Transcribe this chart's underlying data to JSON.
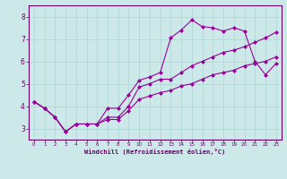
{
  "xlabel": "Windchill (Refroidissement éolien,°C)",
  "ylabel": "",
  "bg_color": "#cce8e8",
  "line_color": "#990099",
  "xlim": [
    -0.5,
    23.5
  ],
  "ylim": [
    2.5,
    8.5
  ],
  "xticks": [
    0,
    1,
    2,
    3,
    4,
    5,
    6,
    7,
    8,
    9,
    10,
    11,
    12,
    13,
    14,
    15,
    16,
    17,
    18,
    19,
    20,
    21,
    22,
    23
  ],
  "yticks": [
    3,
    4,
    5,
    6,
    7,
    8
  ],
  "line1_x": [
    0,
    1,
    2,
    3,
    4,
    5,
    6,
    7,
    8,
    9,
    10,
    11,
    12,
    13,
    14,
    15,
    16,
    17,
    18,
    19,
    20,
    21,
    22,
    23
  ],
  "line1_y": [
    4.2,
    3.9,
    3.5,
    2.85,
    3.2,
    3.2,
    3.2,
    3.9,
    3.9,
    4.5,
    5.15,
    5.3,
    5.5,
    7.05,
    7.4,
    7.85,
    7.55,
    7.5,
    7.35,
    7.5,
    7.35,
    6.0,
    5.4,
    5.9
  ],
  "line2_x": [
    0,
    1,
    2,
    3,
    4,
    5,
    6,
    7,
    8,
    9,
    10,
    11,
    12,
    13,
    14,
    15,
    16,
    17,
    18,
    19,
    20,
    21,
    22,
    23
  ],
  "line2_y": [
    4.2,
    3.9,
    3.5,
    2.85,
    3.2,
    3.2,
    3.2,
    3.5,
    3.5,
    4.0,
    4.85,
    5.0,
    5.2,
    5.2,
    5.5,
    5.8,
    6.0,
    6.2,
    6.4,
    6.5,
    6.65,
    6.85,
    7.05,
    7.3
  ],
  "line3_x": [
    0,
    1,
    2,
    3,
    4,
    5,
    6,
    7,
    8,
    9,
    10,
    11,
    12,
    13,
    14,
    15,
    16,
    17,
    18,
    19,
    20,
    21,
    22,
    23
  ],
  "line3_y": [
    4.2,
    3.9,
    3.5,
    2.85,
    3.2,
    3.2,
    3.2,
    3.4,
    3.4,
    3.8,
    4.3,
    4.45,
    4.6,
    4.7,
    4.9,
    5.0,
    5.2,
    5.4,
    5.5,
    5.6,
    5.8,
    5.9,
    6.0,
    6.2
  ],
  "grid_color": "#aad4d4",
  "font_color": "#660066",
  "marker": "D",
  "markersize": 2.0,
  "linewidth": 0.8
}
